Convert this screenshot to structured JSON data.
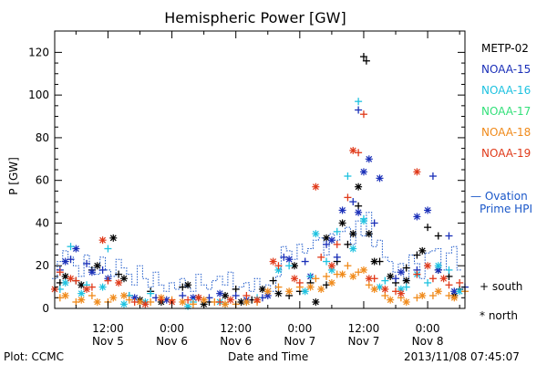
{
  "chart_data": {
    "type": "scatter",
    "title": "Hemispheric Power [GW]",
    "ylabel": "P [GW]",
    "xlabel": "Date and Time",
    "ylim": [
      0,
      130
    ],
    "y_ticks": [
      0,
      20,
      40,
      60,
      80,
      100,
      120
    ],
    "x_range_hours": [
      2,
      79
    ],
    "x_ticks": [
      {
        "t": 12,
        "time": "12:00",
        "date": "Nov 5"
      },
      {
        "t": 24,
        "time": "0:00",
        "date": "Nov 6"
      },
      {
        "t": 36,
        "time": "12:00",
        "date": "Nov 6"
      },
      {
        "t": 48,
        "time": "0:00",
        "date": "Nov 7"
      },
      {
        "t": 60,
        "time": "12:00",
        "date": "Nov 7"
      },
      {
        "t": 72,
        "time": "0:00",
        "date": "Nov 8"
      }
    ],
    "series": [
      {
        "name": "METP-02",
        "color": "#000000",
        "south": [
          [
            3,
            12
          ],
          [
            6,
            13
          ],
          [
            9,
            18
          ],
          [
            14,
            16
          ],
          [
            20,
            8
          ],
          [
            26,
            10
          ],
          [
            29,
            5
          ],
          [
            31,
            3
          ],
          [
            36,
            9
          ],
          [
            39,
            4
          ],
          [
            43,
            13
          ],
          [
            46,
            6
          ],
          [
            48,
            8
          ],
          [
            50,
            12
          ],
          [
            53,
            11
          ],
          [
            55,
            22
          ],
          [
            57,
            30
          ],
          [
            59,
            48
          ],
          [
            60,
            118
          ],
          [
            60.5,
            116
          ],
          [
            63,
            22
          ],
          [
            66,
            12
          ],
          [
            68,
            19
          ],
          [
            70,
            25
          ],
          [
            72,
            38
          ],
          [
            74,
            34
          ],
          [
            76,
            15
          ],
          [
            78,
            9
          ]
        ],
        "north": [
          [
            4,
            15
          ],
          [
            7,
            11
          ],
          [
            10,
            20
          ],
          [
            13,
            33
          ],
          [
            15,
            14
          ],
          [
            18,
            4
          ],
          [
            22,
            3
          ],
          [
            27,
            11
          ],
          [
            30,
            2
          ],
          [
            34,
            6
          ],
          [
            37,
            3
          ],
          [
            41,
            9
          ],
          [
            44,
            7
          ],
          [
            47,
            20
          ],
          [
            51,
            3
          ],
          [
            53,
            33
          ],
          [
            56,
            40
          ],
          [
            58,
            35
          ],
          [
            59,
            57
          ],
          [
            61,
            35
          ],
          [
            62,
            22
          ],
          [
            65,
            15
          ],
          [
            68,
            13
          ],
          [
            71,
            27
          ],
          [
            74,
            18
          ],
          [
            77,
            6
          ]
        ]
      },
      {
        "name": "NOAA-15",
        "color": "#1a2fb8",
        "south": [
          [
            3,
            18
          ],
          [
            5,
            23
          ],
          [
            8,
            21
          ],
          [
            11,
            18
          ],
          [
            16,
            6
          ],
          [
            21,
            5
          ],
          [
            26,
            6
          ],
          [
            31,
            5
          ],
          [
            36,
            6
          ],
          [
            41,
            5
          ],
          [
            45,
            24
          ],
          [
            49,
            22
          ],
          [
            53,
            30
          ],
          [
            55,
            24
          ],
          [
            58,
            50
          ],
          [
            59,
            93
          ],
          [
            62,
            40
          ],
          [
            66,
            14
          ],
          [
            70,
            18
          ],
          [
            73,
            62
          ],
          [
            76,
            34
          ],
          [
            79,
            10
          ]
        ],
        "north": [
          [
            4,
            22
          ],
          [
            6,
            28
          ],
          [
            9,
            17
          ],
          [
            12,
            14
          ],
          [
            17,
            5
          ],
          [
            23,
            4
          ],
          [
            28,
            5
          ],
          [
            33,
            7
          ],
          [
            38,
            4
          ],
          [
            42,
            6
          ],
          [
            46,
            23
          ],
          [
            50,
            15
          ],
          [
            54,
            32
          ],
          [
            56,
            46
          ],
          [
            59,
            45
          ],
          [
            60,
            64
          ],
          [
            61,
            70
          ],
          [
            63,
            61
          ],
          [
            67,
            17
          ],
          [
            70,
            43
          ],
          [
            72,
            46
          ],
          [
            74,
            18
          ],
          [
            77,
            8
          ]
        ]
      },
      {
        "name": "NOAA-16",
        "color": "#1ec2e0",
        "south": [
          [
            3,
            9
          ],
          [
            5,
            29
          ],
          [
            8,
            11
          ],
          [
            12,
            28
          ],
          [
            16,
            6
          ],
          [
            20,
            7
          ],
          [
            28,
            3
          ],
          [
            34,
            2
          ],
          [
            40,
            5
          ],
          [
            46,
            20
          ],
          [
            50,
            15
          ],
          [
            53,
            22
          ],
          [
            55,
            36
          ],
          [
            57,
            62
          ],
          [
            59,
            97
          ],
          [
            60,
            42
          ],
          [
            64,
            13
          ],
          [
            68,
            10
          ],
          [
            72,
            12
          ],
          [
            76,
            18
          ]
        ],
        "north": [
          [
            4,
            12
          ],
          [
            7,
            7
          ],
          [
            11,
            10
          ],
          [
            15,
            2
          ],
          [
            19,
            3
          ],
          [
            27,
            1
          ],
          [
            33,
            3
          ],
          [
            38,
            3
          ],
          [
            44,
            18
          ],
          [
            49,
            8
          ],
          [
            51,
            35
          ],
          [
            54,
            18
          ],
          [
            58,
            28
          ],
          [
            60,
            41
          ],
          [
            63,
            10
          ],
          [
            67,
            9
          ],
          [
            70,
            16
          ],
          [
            74,
            20
          ],
          [
            78,
            8
          ]
        ]
      },
      {
        "name": "NOAA-17",
        "color": "#33e07a",
        "south": [],
        "north": []
      },
      {
        "name": "NOAA-18",
        "color": "#f08a1a",
        "south": [
          [
            3,
            5
          ],
          [
            6,
            3
          ],
          [
            9,
            6
          ],
          [
            12,
            3
          ],
          [
            16,
            4
          ],
          [
            20,
            3
          ],
          [
            24,
            4
          ],
          [
            28,
            2
          ],
          [
            32,
            3
          ],
          [
            36,
            2
          ],
          [
            40,
            3
          ],
          [
            44,
            10
          ],
          [
            48,
            10
          ],
          [
            51,
            14
          ],
          [
            53,
            15
          ],
          [
            55,
            16
          ],
          [
            57,
            20
          ],
          [
            59,
            17
          ],
          [
            61,
            11
          ],
          [
            64,
            6
          ],
          [
            67,
            5
          ],
          [
            70,
            5
          ],
          [
            73,
            6
          ],
          [
            76,
            6
          ],
          [
            79,
            8
          ]
        ],
        "north": [
          [
            4,
            6
          ],
          [
            7,
            4
          ],
          [
            10,
            3
          ],
          [
            13,
            5
          ],
          [
            15,
            6
          ],
          [
            18,
            3
          ],
          [
            22,
            5
          ],
          [
            26,
            3
          ],
          [
            30,
            4
          ],
          [
            34,
            2
          ],
          [
            38,
            3
          ],
          [
            42,
            8
          ],
          [
            46,
            8
          ],
          [
            50,
            10
          ],
          [
            52,
            9
          ],
          [
            54,
            12
          ],
          [
            56,
            16
          ],
          [
            58,
            15
          ],
          [
            60,
            18
          ],
          [
            62,
            9
          ],
          [
            65,
            4
          ],
          [
            68,
            3
          ],
          [
            71,
            6
          ],
          [
            74,
            8
          ],
          [
            77,
            5
          ]
        ]
      },
      {
        "name": "NOAA-19",
        "color": "#e03a1a",
        "south": [
          [
            3,
            17
          ],
          [
            6,
            13
          ],
          [
            9,
            10
          ],
          [
            12,
            13
          ],
          [
            17,
            3
          ],
          [
            22,
            4
          ],
          [
            27,
            4
          ],
          [
            33,
            3
          ],
          [
            38,
            6
          ],
          [
            44,
            20
          ],
          [
            48,
            12
          ],
          [
            52,
            24
          ],
          [
            55,
            30
          ],
          [
            57,
            52
          ],
          [
            59,
            73
          ],
          [
            60,
            91
          ],
          [
            62,
            14
          ],
          [
            66,
            8
          ],
          [
            70,
            16
          ],
          [
            73,
            14
          ],
          [
            76,
            11
          ],
          [
            78,
            12
          ]
        ],
        "north": [
          [
            2,
            9
          ],
          [
            5,
            14
          ],
          [
            8,
            9
          ],
          [
            11,
            32
          ],
          [
            14,
            12
          ],
          [
            19,
            2
          ],
          [
            24,
            3
          ],
          [
            29,
            5
          ],
          [
            35,
            4
          ],
          [
            40,
            4
          ],
          [
            43,
            22
          ],
          [
            47,
            14
          ],
          [
            51,
            57
          ],
          [
            54,
            20
          ],
          [
            58,
            74
          ],
          [
            61,
            14
          ],
          [
            64,
            9
          ],
          [
            67,
            7
          ],
          [
            70,
            64
          ],
          [
            72,
            20
          ],
          [
            75,
            14
          ]
        ]
      }
    ],
    "ovation_hpi": [
      [
        2,
        14
      ],
      [
        3,
        22
      ],
      [
        4,
        27
      ],
      [
        5,
        24
      ],
      [
        6,
        20
      ],
      [
        7,
        15
      ],
      [
        8,
        25
      ],
      [
        9,
        19
      ],
      [
        10,
        16
      ],
      [
        11,
        24
      ],
      [
        12,
        18
      ],
      [
        13,
        15
      ],
      [
        14,
        23
      ],
      [
        15,
        19
      ],
      [
        16,
        16
      ],
      [
        17,
        11
      ],
      [
        18,
        20
      ],
      [
        19,
        14
      ],
      [
        20,
        10
      ],
      [
        21,
        17
      ],
      [
        22,
        11
      ],
      [
        23,
        8
      ],
      [
        24,
        12
      ],
      [
        25,
        9
      ],
      [
        26,
        14
      ],
      [
        27,
        10
      ],
      [
        28,
        8
      ],
      [
        29,
        16
      ],
      [
        30,
        11
      ],
      [
        31,
        9
      ],
      [
        32,
        13
      ],
      [
        33,
        15
      ],
      [
        34,
        11
      ],
      [
        35,
        17
      ],
      [
        36,
        9
      ],
      [
        37,
        10
      ],
      [
        38,
        12
      ],
      [
        39,
        8
      ],
      [
        40,
        14
      ],
      [
        41,
        10
      ],
      [
        42,
        11
      ],
      [
        43,
        8
      ],
      [
        44,
        15
      ],
      [
        45,
        29
      ],
      [
        46,
        27
      ],
      [
        47,
        23
      ],
      [
        48,
        30
      ],
      [
        49,
        26
      ],
      [
        50,
        28
      ],
      [
        51,
        32
      ],
      [
        52,
        33
      ],
      [
        53,
        25
      ],
      [
        54,
        35
      ],
      [
        55,
        32
      ],
      [
        56,
        36
      ],
      [
        57,
        38
      ],
      [
        58,
        30
      ],
      [
        59,
        41
      ],
      [
        60,
        34
      ],
      [
        61,
        45
      ],
      [
        62,
        29
      ],
      [
        63,
        32
      ],
      [
        64,
        24
      ],
      [
        65,
        22
      ],
      [
        66,
        17
      ],
      [
        67,
        21
      ],
      [
        68,
        13
      ],
      [
        69,
        25
      ],
      [
        70,
        21
      ],
      [
        71,
        14
      ],
      [
        72,
        26
      ],
      [
        73,
        27
      ],
      [
        74,
        28
      ],
      [
        75,
        18
      ],
      [
        76,
        26
      ],
      [
        77,
        29
      ],
      [
        78,
        18
      ]
    ],
    "legend": [
      {
        "label": "METP-02",
        "color": "#000000"
      },
      {
        "label": "NOAA-15",
        "color": "#1a2fb8"
      },
      {
        "label": "NOAA-16",
        "color": "#1ec2e0"
      },
      {
        "label": "NOAA-17",
        "color": "#33e07a"
      },
      {
        "label": "NOAA-18",
        "color": "#f08a1a"
      },
      {
        "label": "NOAA-19",
        "color": "#e03a1a"
      }
    ],
    "ovation_label_1": "— Ovation",
    "ovation_label_2": "Prime HPI",
    "ovation_color": "#1a57c9",
    "symbol_south": "+ south",
    "symbol_north": "* north",
    "footer_left": "Plot: CCMC",
    "footer_right": "2013/11/08 07:45:07",
    "grid": false,
    "legend_placement": "right"
  }
}
